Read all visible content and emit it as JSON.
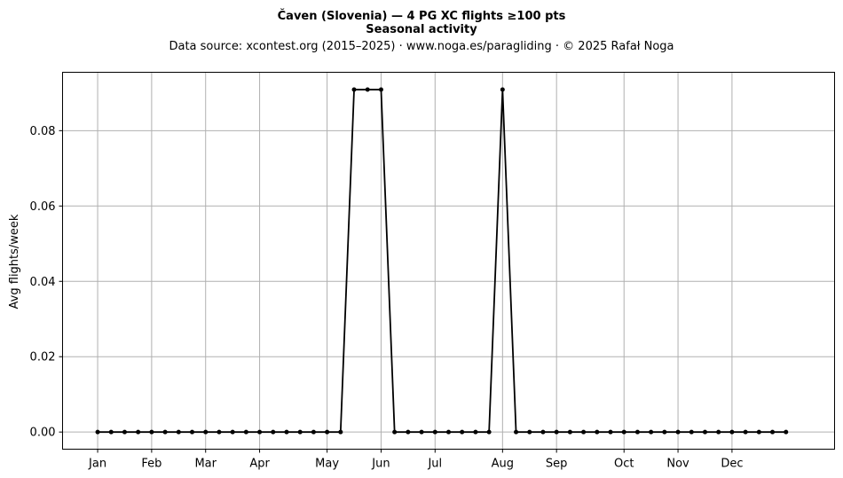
{
  "chart_data": {
    "type": "line",
    "title_line1": "Čaven (Slovenia)  —  4 PG XC flights ≥100 pts",
    "title_line2": "Seasonal activity",
    "subtitle": "Data source: xcontest.org (2015–2025)  ·  www.noga.es/paragliding  ·  © 2025 Rafał Noga",
    "xlabel": "",
    "ylabel": "Avg flights/week",
    "grid": true,
    "legend": "none",
    "line_color": "#000000",
    "grid_color": "#b0b0b0",
    "x_domain": [
      -2.6,
      54.6
    ],
    "ylim": [
      -0.00455,
      0.0955
    ],
    "x_ticks": [
      {
        "label": "Jan",
        "week": 0
      },
      {
        "label": "Feb",
        "week": 4
      },
      {
        "label": "Mar",
        "week": 8
      },
      {
        "label": "Apr",
        "week": 12
      },
      {
        "label": "May",
        "week": 17
      },
      {
        "label": "Jun",
        "week": 21
      },
      {
        "label": "Jul",
        "week": 25
      },
      {
        "label": "Aug",
        "week": 30
      },
      {
        "label": "Sep",
        "week": 34
      },
      {
        "label": "Oct",
        "week": 39
      },
      {
        "label": "Nov",
        "week": 43
      },
      {
        "label": "Dec",
        "week": 47
      }
    ],
    "y_ticks": [
      {
        "label": "0.00",
        "value": 0.0
      },
      {
        "label": "0.02",
        "value": 0.02
      },
      {
        "label": "0.04",
        "value": 0.04
      },
      {
        "label": "0.06",
        "value": 0.06
      },
      {
        "label": "0.08",
        "value": 0.08
      }
    ],
    "series": [
      {
        "x": [
          0,
          1,
          2,
          3,
          4,
          5,
          6,
          7,
          8,
          9,
          10,
          11,
          12,
          13,
          14,
          15,
          16,
          17,
          18,
          19,
          20,
          21,
          22,
          23,
          24,
          25,
          26,
          27,
          28,
          29,
          30,
          31,
          32,
          33,
          34,
          35,
          36,
          37,
          38,
          39,
          40,
          41,
          42,
          43,
          44,
          45,
          46,
          47,
          48,
          49,
          50,
          51
        ],
        "y": [
          0,
          0,
          0,
          0,
          0,
          0,
          0,
          0,
          0,
          0,
          0,
          0,
          0,
          0,
          0,
          0,
          0,
          0,
          0,
          0.0909,
          0.0909,
          0.0909,
          0,
          0,
          0,
          0,
          0,
          0,
          0,
          0,
          0.0909,
          0,
          0,
          0,
          0,
          0,
          0,
          0,
          0,
          0,
          0,
          0,
          0,
          0,
          0,
          0,
          0,
          0,
          0,
          0,
          0,
          0
        ]
      }
    ]
  }
}
